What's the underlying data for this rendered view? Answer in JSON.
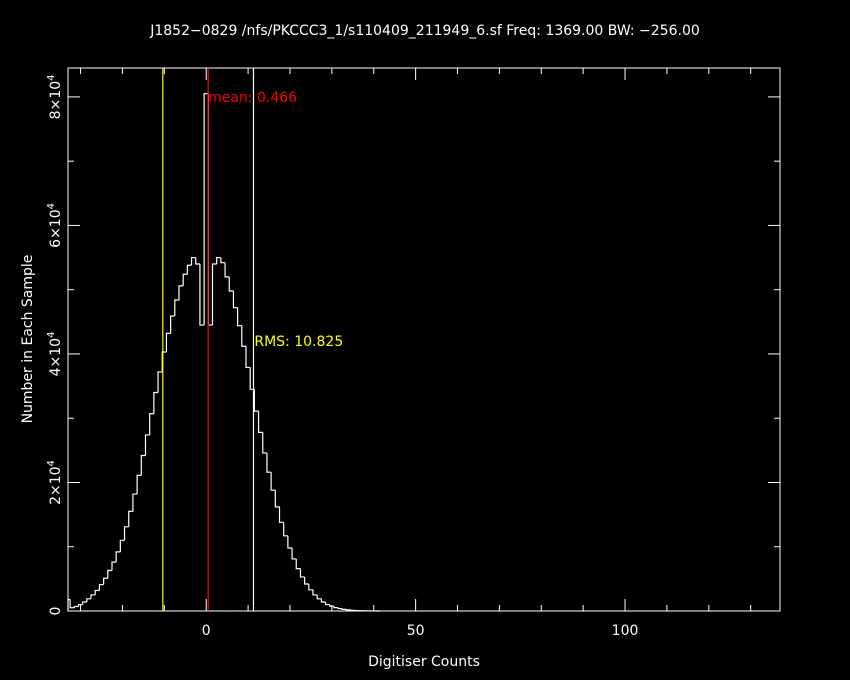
{
  "chart_data": {
    "type": "bar",
    "title": "J1852−0829 /nfs/PKCCC3_1/s110409_211949_6.sf Freq: 1369.00 BW: −256.00",
    "xlabel": "Digitiser Counts",
    "ylabel": "Number in Each Sample",
    "xlim": [
      -33,
      137
    ],
    "ylim": [
      0,
      84500
    ],
    "x_ticks": [
      0,
      50,
      100
    ],
    "y_ticks": [
      0,
      20000,
      40000,
      60000,
      80000
    ],
    "y_tick_labels": [
      {
        "mantissa": "0",
        "exp": ""
      },
      {
        "mantissa": "2×10",
        "exp": "4"
      },
      {
        "mantissa": "4×10",
        "exp": "4"
      },
      {
        "mantissa": "6×10",
        "exp": "4"
      },
      {
        "mantissa": "8×10",
        "exp": "4"
      }
    ],
    "x_tick_labels": [
      "0",
      "50",
      "100"
    ],
    "bin_width": 1,
    "bins": [
      [
        -33,
        1800
      ],
      [
        -32,
        500
      ],
      [
        -31,
        700
      ],
      [
        -30,
        1000
      ],
      [
        -29,
        1400
      ],
      [
        -28,
        1900
      ],
      [
        -27,
        2500
      ],
      [
        -26,
        3200
      ],
      [
        -25,
        4100
      ],
      [
        -24,
        5100
      ],
      [
        -23,
        6300
      ],
      [
        -22,
        7600
      ],
      [
        -21,
        9200
      ],
      [
        -20,
        11000
      ],
      [
        -19,
        13100
      ],
      [
        -18,
        15500
      ],
      [
        -17,
        18200
      ],
      [
        -16,
        21100
      ],
      [
        -15,
        24200
      ],
      [
        -14,
        27400
      ],
      [
        -13,
        30700
      ],
      [
        -12,
        34000
      ],
      [
        -11,
        37200
      ],
      [
        -10,
        40300
      ],
      [
        -9,
        43200
      ],
      [
        -8,
        45900
      ],
      [
        -7,
        48400
      ],
      [
        -6,
        50600
      ],
      [
        -5,
        52400
      ],
      [
        -4,
        53800
      ],
      [
        -3,
        55000
      ],
      [
        -2,
        54000
      ],
      [
        -1,
        44500
      ],
      [
        0,
        80500
      ],
      [
        1,
        44500
      ],
      [
        2,
        54000
      ],
      [
        3,
        55000
      ],
      [
        4,
        54200
      ],
      [
        5,
        52000
      ],
      [
        6,
        49800
      ],
      [
        7,
        47200
      ],
      [
        8,
        44400
      ],
      [
        9,
        41200
      ],
      [
        10,
        37900
      ],
      [
        11,
        34500
      ],
      [
        12,
        31100
      ],
      [
        13,
        27800
      ],
      [
        14,
        24600
      ],
      [
        15,
        21600
      ],
      [
        16,
        18800
      ],
      [
        17,
        16200
      ],
      [
        18,
        13800
      ],
      [
        19,
        11700
      ],
      [
        20,
        9800
      ],
      [
        21,
        8100
      ],
      [
        22,
        6600
      ],
      [
        23,
        5300
      ],
      [
        24,
        4200
      ],
      [
        25,
        3300
      ],
      [
        26,
        2500
      ],
      [
        27,
        1900
      ],
      [
        28,
        1400
      ],
      [
        29,
        1000
      ],
      [
        30,
        750
      ],
      [
        31,
        530
      ],
      [
        32,
        370
      ],
      [
        33,
        250
      ],
      [
        34,
        170
      ],
      [
        35,
        110
      ],
      [
        36,
        70
      ],
      [
        37,
        45
      ],
      [
        38,
        25
      ],
      [
        39,
        15
      ],
      [
        40,
        8
      ],
      [
        41,
        4
      ]
    ],
    "vlines": [
      {
        "x": -10.36,
        "color": "#ffff00"
      },
      {
        "x": 0.466,
        "color": "#ff0000"
      },
      {
        "x": 11.29,
        "color": "#ffffff"
      }
    ],
    "annotations": [
      {
        "text": "mean: 0.466",
        "x": 0.466,
        "y": 80000,
        "color": "#ff0000"
      },
      {
        "text": "RMS: 10.825",
        "x": 11.5,
        "y": 42000,
        "color": "#ffff00"
      }
    ],
    "grid": false,
    "colors": {
      "background": "#000000",
      "axes": "#ffffff",
      "histogram": "#ffffff"
    }
  }
}
